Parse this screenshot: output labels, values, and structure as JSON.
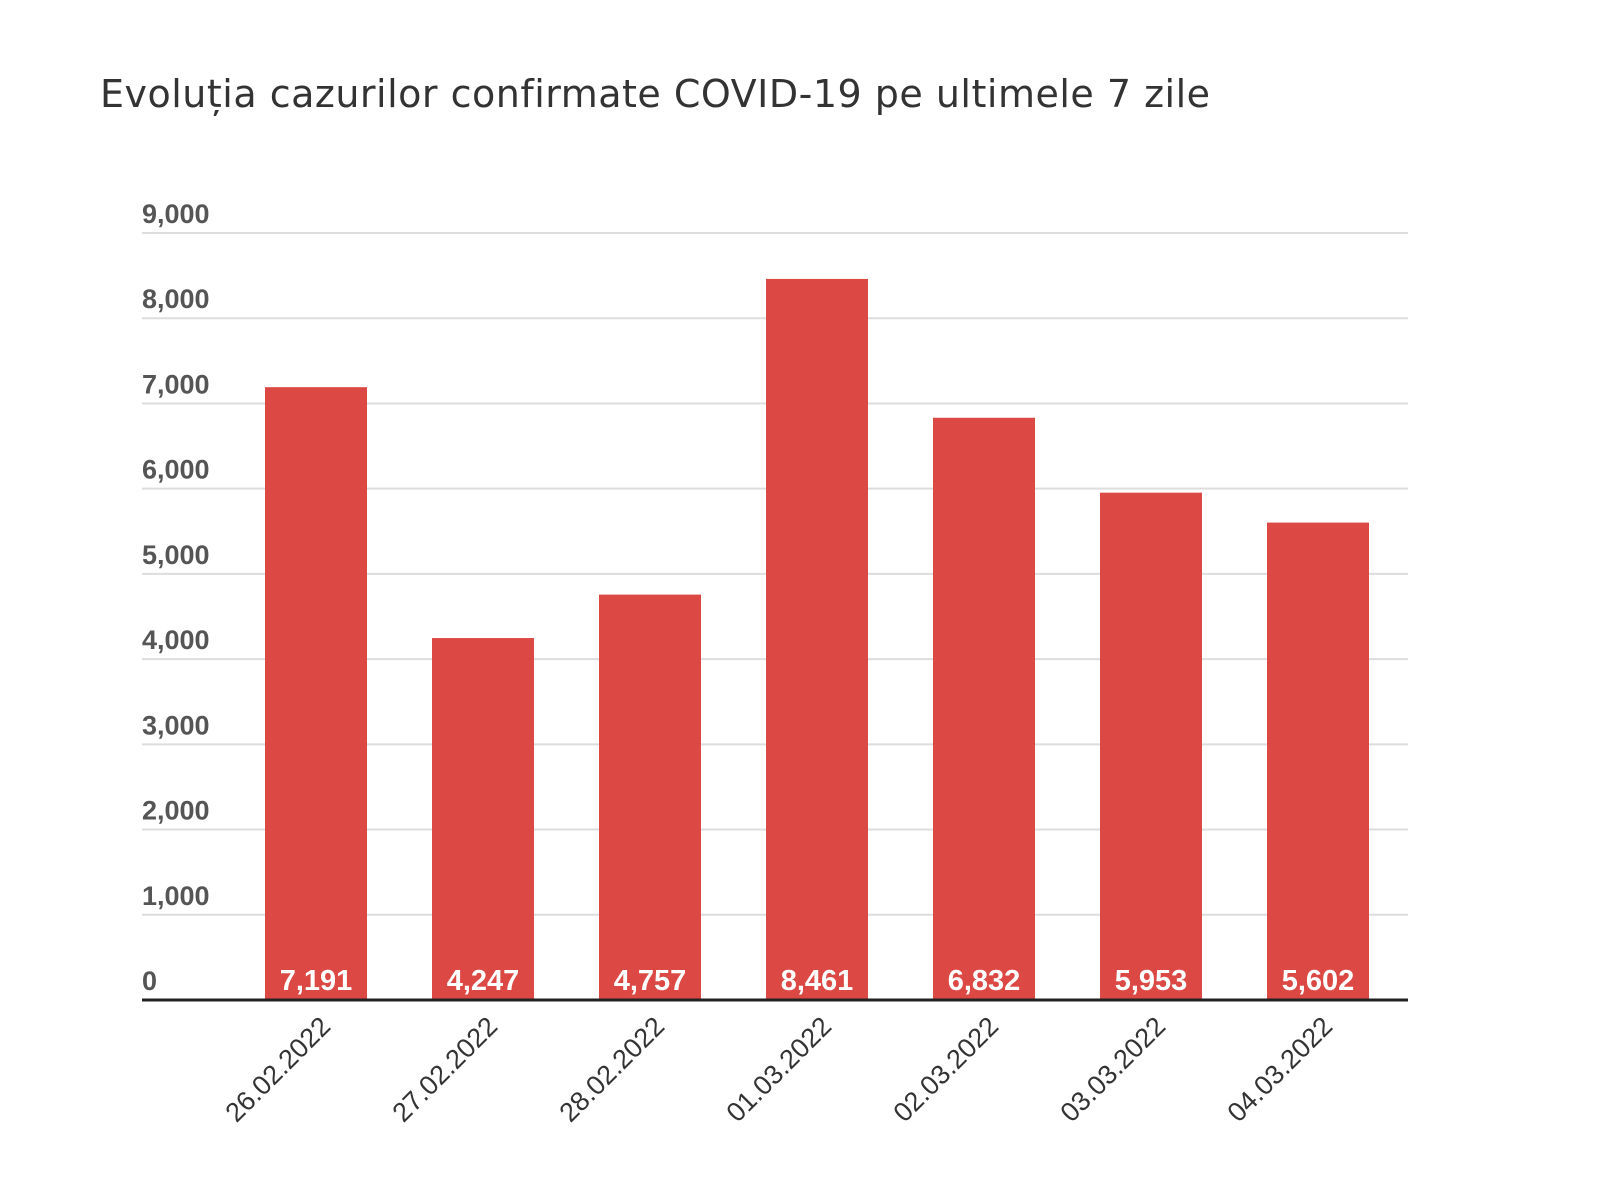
{
  "chart_data": {
    "type": "bar",
    "title": "Evoluția cazurilor confirmate COVID-19 pe ultimele 7 zile",
    "xlabel": "",
    "ylabel": "",
    "categories": [
      "26.02.2022",
      "27.02.2022",
      "28.02.2022",
      "01.03.2022",
      "02.03.2022",
      "03.03.2022",
      "04.03.2022"
    ],
    "values": [
      7191,
      4247,
      4757,
      8461,
      6832,
      5953,
      5602
    ],
    "value_labels": [
      "7,191",
      "4,247",
      "4,757",
      "8,461",
      "6,832",
      "5,953",
      "5,602"
    ],
    "ylim": [
      0,
      9000
    ],
    "yticks": [
      0,
      1000,
      2000,
      3000,
      4000,
      5000,
      6000,
      7000,
      8000,
      9000
    ],
    "ytick_labels": [
      "0",
      "1,000",
      "2,000",
      "3,000",
      "4,000",
      "5,000",
      "6,000",
      "7,000",
      "8,000",
      "9,000"
    ],
    "grid": true,
    "bar_color": "#dc4843",
    "grid_color": "#dddddd",
    "axis_color": "#222222"
  }
}
